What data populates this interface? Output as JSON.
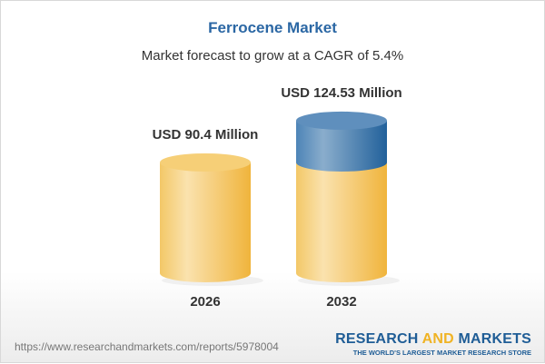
{
  "header": {
    "title": "Ferrocene Market",
    "subtitle": "Market forecast to grow at a CAGR of 5.4%"
  },
  "chart_data": {
    "type": "bar",
    "style": "3d-cylinder",
    "title": "Ferrocene Market",
    "subtitle": "Market forecast to grow at a CAGR of 5.4%",
    "categories": [
      "2026",
      "2032"
    ],
    "values": [
      90.4,
      124.53
    ],
    "data_labels": [
      "USD 90.4 Million",
      "USD 124.53 Million"
    ],
    "unit": "USD Million",
    "cagr": "5.4%",
    "colors": {
      "base": "#f4c25a",
      "growth": "#3f79ad"
    }
  },
  "footer": {
    "url": "https://www.researchandmarkets.com/reports/5978004",
    "logo_part1": "RESEARCH ",
    "logo_part2": "AND",
    "logo_part3": " MARKETS",
    "tagline": "THE WORLD'S LARGEST MARKET RESEARCH STORE"
  }
}
